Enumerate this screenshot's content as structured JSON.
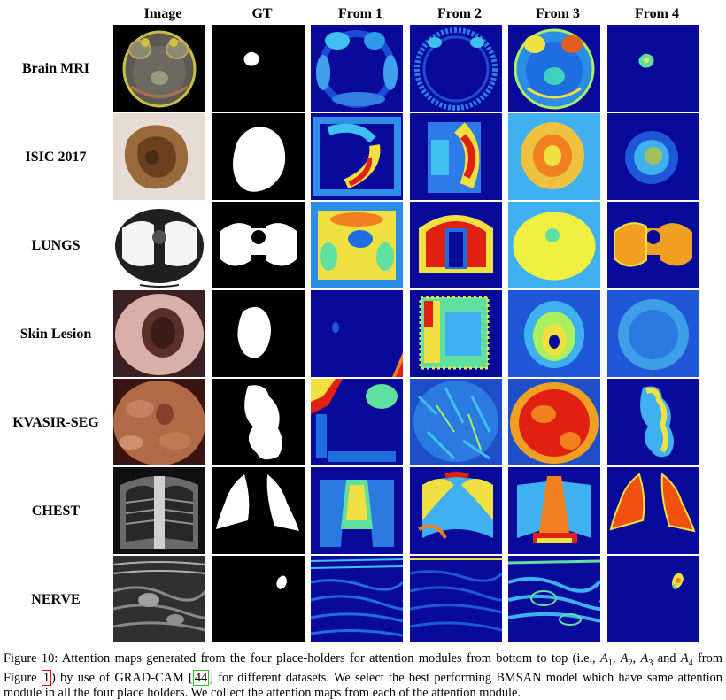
{
  "columns": [
    "Image",
    "GT",
    "From 1",
    "From 2",
    "From 3",
    "From 4"
  ],
  "rows": [
    "Brain MRI",
    "ISIC 2017",
    "LUNGS",
    "Skin Lesion",
    "KVASIR-SEG",
    "CHEST",
    "NERVE"
  ],
  "caption": {
    "label": "Figure 10:",
    "t1": "Attention maps generated from the four place-holders for attention modules from bottom to top (i.e.,",
    "a1": "A",
    "s1": "1",
    "c1": ",",
    "a2": "A",
    "s2": "2",
    "c2": ",",
    "a3": "A",
    "s3": "3",
    "and": "and",
    "a4": "A",
    "s4": "4",
    "t2": "from Figure",
    "fig_ref": "1",
    "t3": ") by use of GRAD-CAM [",
    "cite": "44",
    "t4": "] for different datasets. We select the best performing BMSAN model which have same attention module in all the four place holders. We collect the attention maps from each of the attention module."
  },
  "colors": {
    "jet_background": "#08088c",
    "caption_ref_box": "#e00000",
    "caption_cite_box": "#22cc22"
  }
}
